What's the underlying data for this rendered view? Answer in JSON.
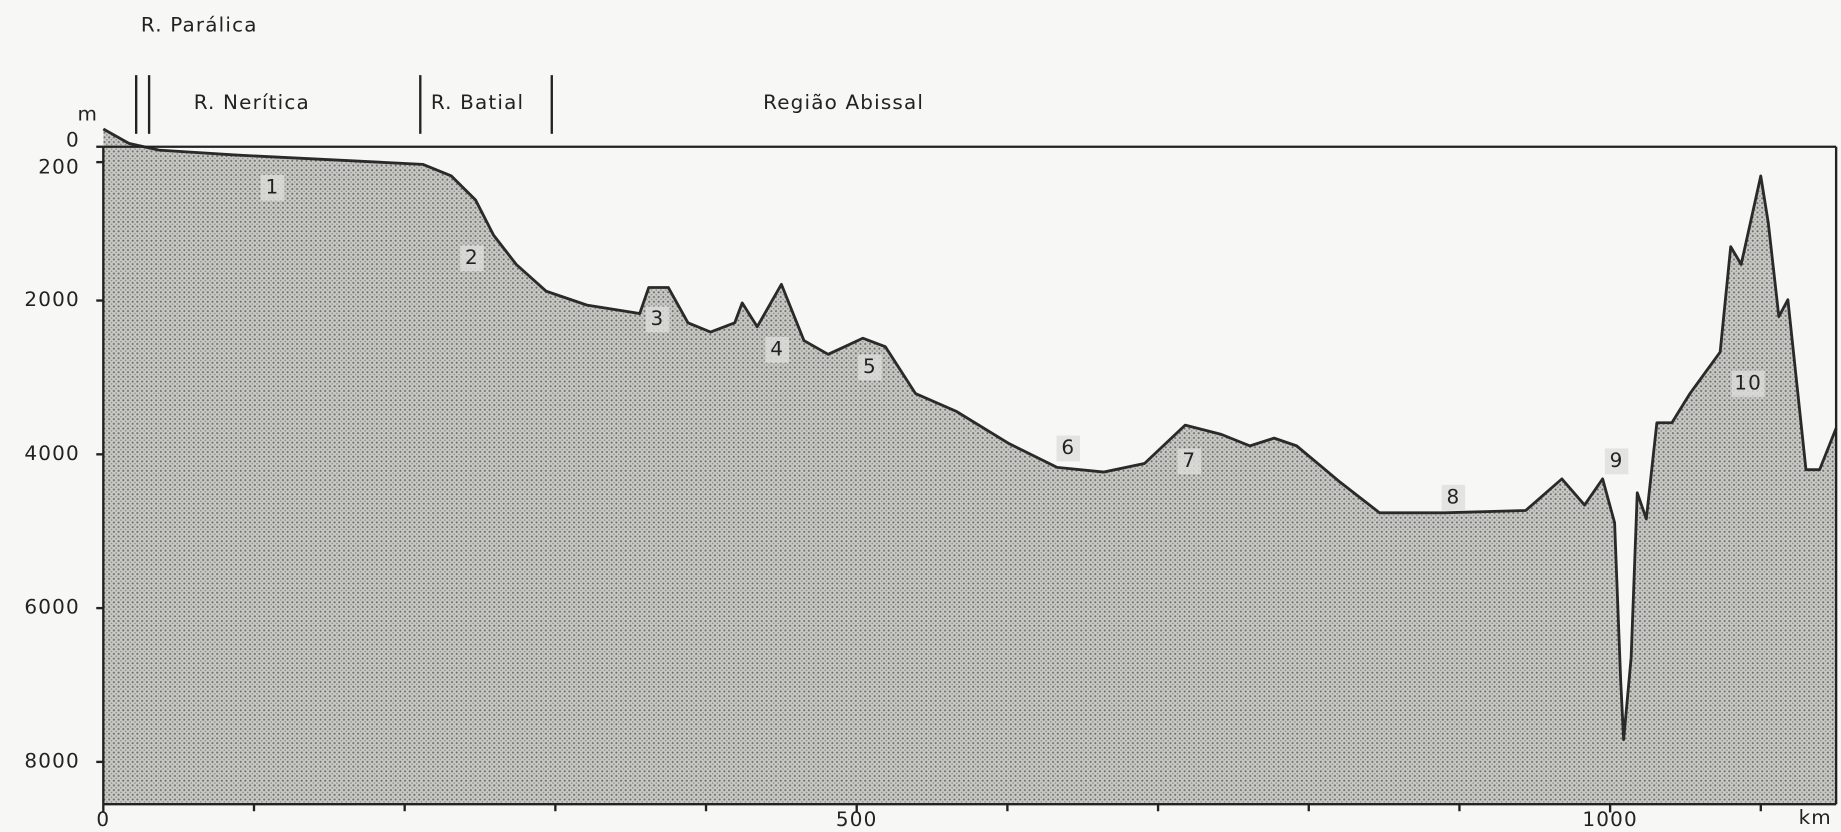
{
  "chart_data": {
    "type": "area",
    "y_unit": "m",
    "x_unit": "km",
    "regions": [
      "R. Parálica",
      "R. Nerítica",
      "R. Batial",
      "Região Abissal"
    ],
    "annotations": [
      "1",
      "2",
      "3",
      "4",
      "5",
      "6",
      "7",
      "8",
      "9",
      "10"
    ],
    "x": [
      0,
      17,
      37,
      87,
      165,
      212,
      231,
      247,
      259,
      274,
      294,
      321,
      356,
      362,
      375,
      388,
      403,
      419,
      424,
      434,
      450,
      465,
      481,
      492,
      504,
      519,
      539,
      566,
      601,
      633,
      664,
      691,
      718,
      742,
      761,
      777,
      792,
      820,
      847,
      890,
      944,
      968,
      983,
      995,
      1003,
      1007,
      1009,
      1014,
      1018,
      1024,
      1031,
      1041,
      1053,
      1073,
      1080,
      1087,
      1100,
      1105,
      1112,
      1118,
      1130,
      1139,
      1150
    ],
    "values": [
      -230,
      -45,
      45,
      107,
      183,
      229,
      380,
      690,
      1150,
      1530,
      1880,
      2060,
      2170,
      1830,
      1830,
      2290,
      2410,
      2290,
      2030,
      2340,
      1790,
      2520,
      2700,
      2600,
      2490,
      2600,
      3210,
      3440,
      3860,
      4170,
      4230,
      4120,
      3620,
      3740,
      3890,
      3790,
      3890,
      4350,
      4760,
      4760,
      4730,
      4320,
      4660,
      4320,
      4890,
      6950,
      7710,
      6640,
      4500,
      4840,
      3590,
      3590,
      3210,
      2670,
      1300,
      1530,
      380,
      990,
      2210,
      1990,
      4200,
      4200,
      3660
    ],
    "color": "#b8b8b4",
    "xlim": [
      0,
      1150
    ],
    "ylim": [
      0,
      8550
    ],
    "y_inverted": true,
    "xticks": [
      0,
      500,
      1000
    ],
    "xminor_ticks": [
      100,
      200,
      300,
      400,
      600,
      700,
      800,
      900,
      1100
    ],
    "yticks": [
      0,
      200,
      2000,
      4000,
      6000,
      8000
    ]
  }
}
